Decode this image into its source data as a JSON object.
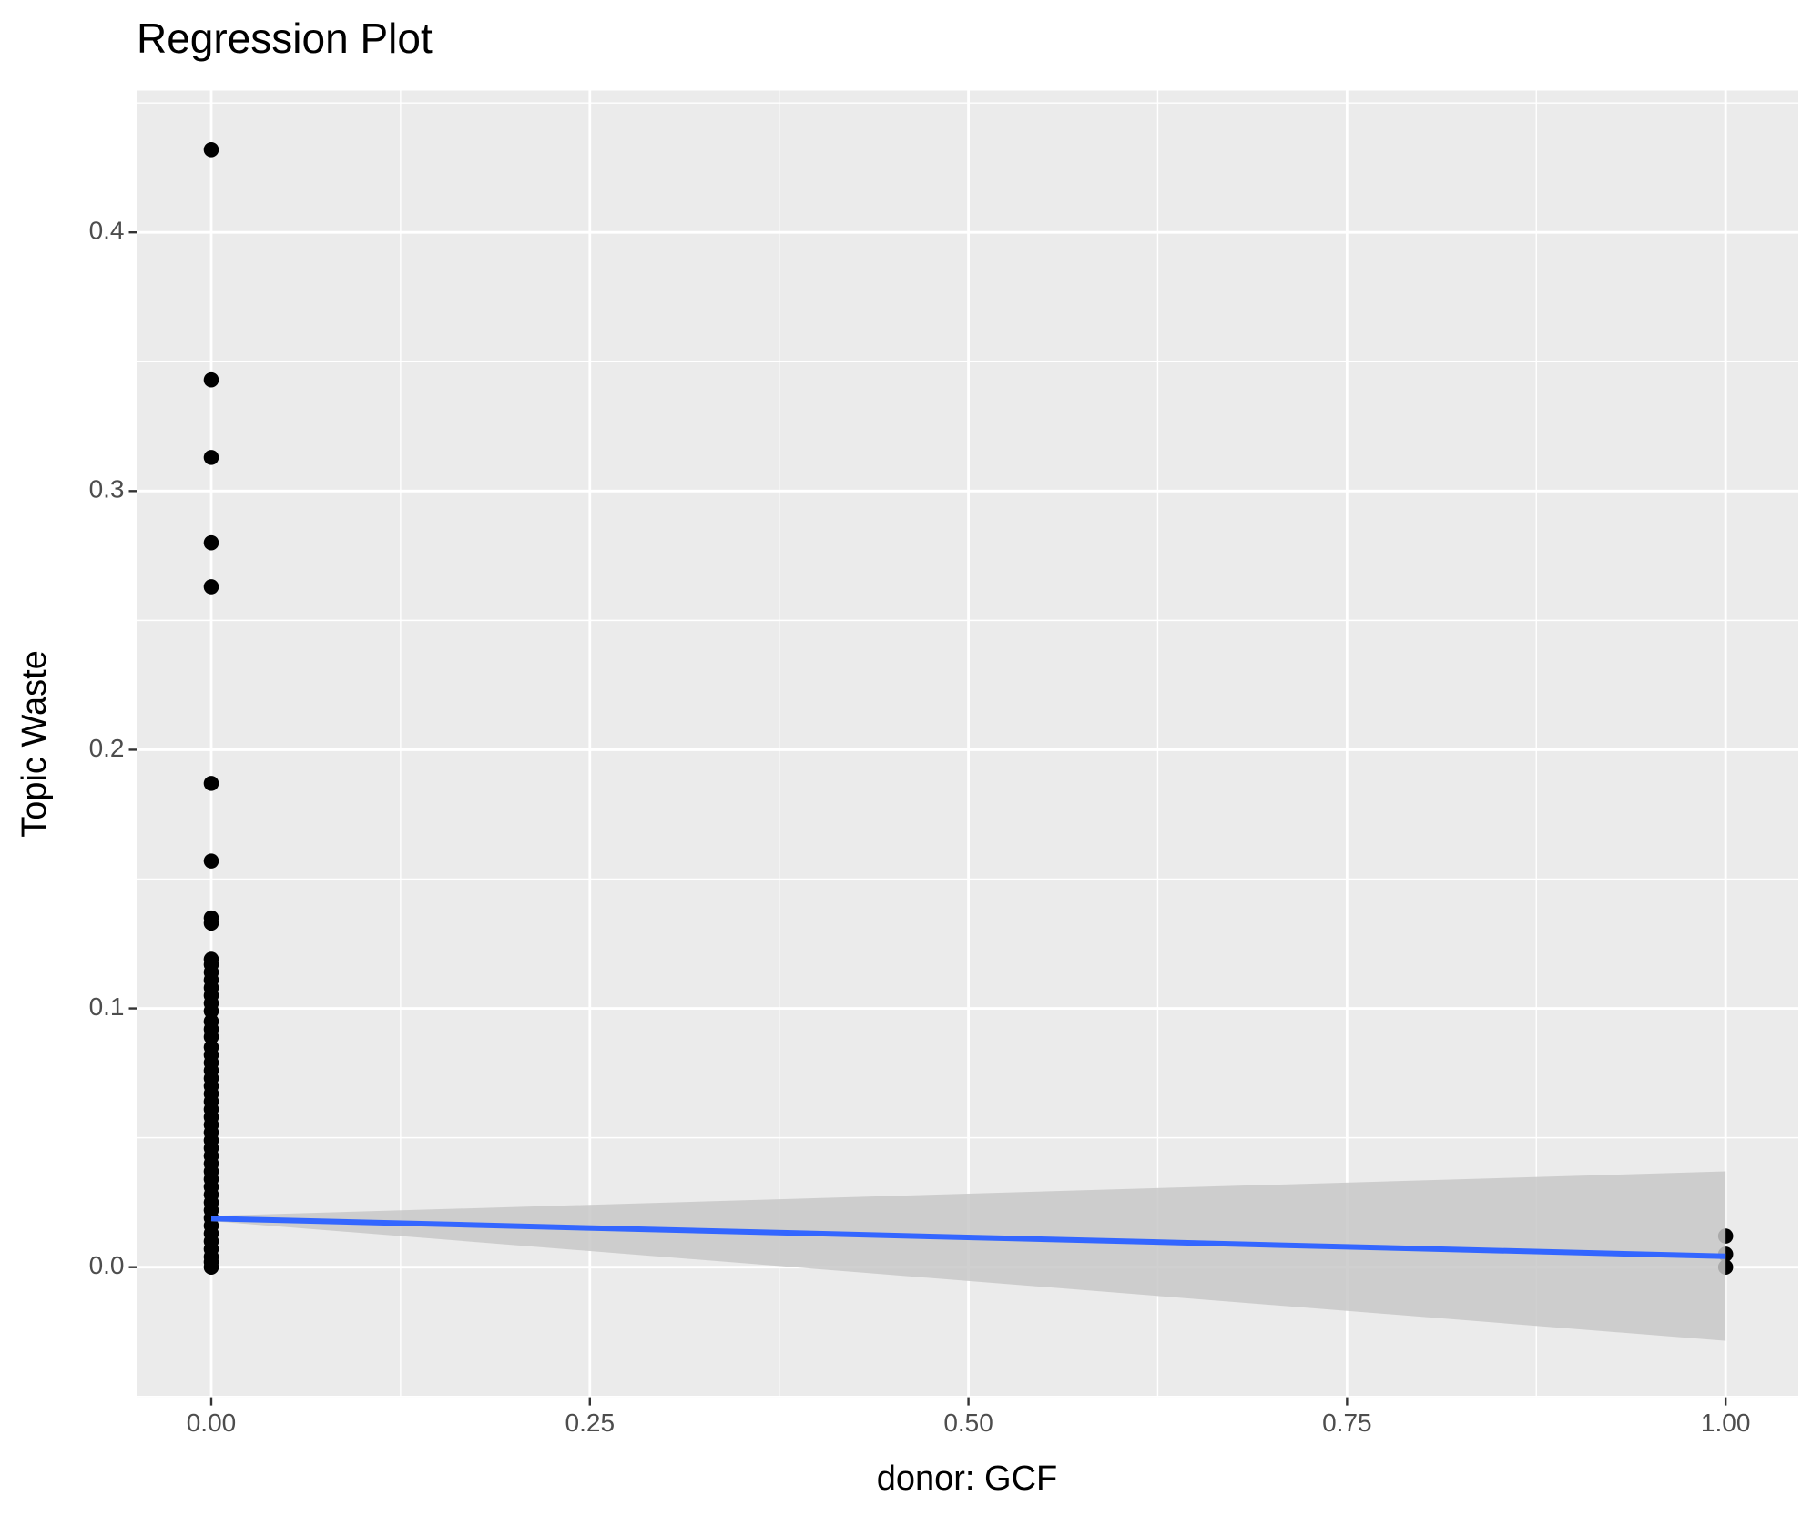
{
  "chart_data": {
    "type": "scatter",
    "title": "Regression Plot",
    "x_label": "donor: GCF",
    "y_label": "Topic Waste",
    "xlim": [
      -0.049,
      1.048
    ],
    "ylim": [
      -0.0503,
      0.4548
    ],
    "xticks": [
      {
        "value": 0,
        "label": "0.00"
      },
      0.25,
      {
        "value": 0.5,
        "label": "0.50"
      },
      0.75,
      {
        "value": 1,
        "label": "1.00"
      }
    ],
    "yticks": [
      {
        "value": 0,
        "label": "0.0"
      },
      0.1,
      0.2,
      0.3,
      0.4
    ],
    "grid": true,
    "series": [
      {
        "color": "#000000",
        "x": [
          0,
          0,
          0,
          0,
          0,
          0,
          0,
          0,
          0,
          0,
          0,
          0,
          0,
          0,
          0,
          0,
          0,
          0,
          0,
          0,
          0,
          0,
          0,
          0,
          0,
          0,
          0,
          0,
          0,
          0,
          0,
          0,
          0,
          0,
          0,
          0,
          0,
          0,
          0,
          0,
          0,
          0,
          0,
          0,
          0,
          0,
          0,
          0,
          0,
          0,
          1,
          1,
          1
        ],
        "values": [
          0.432,
          0.343,
          0.313,
          0.28,
          0.263,
          0.187,
          0.157,
          0.135,
          0.133,
          0.119,
          0.117,
          0.114,
          0.111,
          0.108,
          0.105,
          0.102,
          0.099,
          0.095,
          0.092,
          0.089,
          0.085,
          0.082,
          0.079,
          0.076,
          0.073,
          0.07,
          0.067,
          0.064,
          0.061,
          0.058,
          0.055,
          0.052,
          0.049,
          0.046,
          0.043,
          0.04,
          0.037,
          0.034,
          0.031,
          0.028,
          0.025,
          0.022,
          0.019,
          0.016,
          0.013,
          0.01,
          0.007,
          0.004,
          0.002,
          0.0,
          0.012,
          0.005,
          0.0
        ]
      }
    ],
    "fit": {
      "color": "#3366ff",
      "band_color": "#c8c8c8",
      "x": [
        0,
        1
      ],
      "values": [
        0.0188,
        0.0042
      ],
      "lower": [
        0.0178,
        -0.0285
      ],
      "upper": [
        0.0198,
        0.037
      ]
    }
  }
}
